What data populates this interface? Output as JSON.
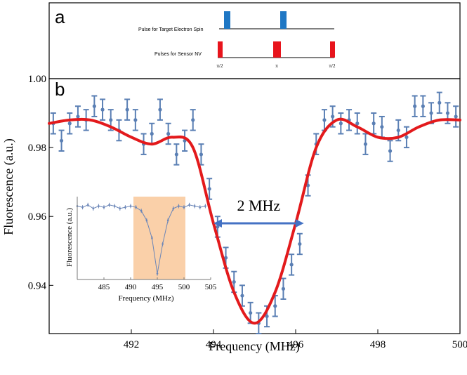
{
  "panel_a": {
    "label": "a",
    "rows": [
      {
        "name": "Pulse for Target Electron Spin",
        "color": "#1f77c4"
      },
      {
        "name": "Pulses for Sensor NV",
        "color": "#e8141c"
      }
    ],
    "pulse_labels": [
      "π/2",
      "π",
      "π/2"
    ]
  },
  "chart_data": {
    "type": "scatter",
    "panel_label": "b",
    "title": "",
    "xlabel": "Frequency (MHz)",
    "ylabel": "Fluorescence (a.u.)",
    "xlim": [
      490,
      500
    ],
    "ylim": [
      0.926,
      1.0
    ],
    "xticks": [
      492,
      494,
      496,
      498,
      500
    ],
    "yticks": [
      0.94,
      0.96,
      0.98,
      1.0
    ],
    "ytick_labels": [
      "0.94",
      "0.96",
      "0.98",
      "1.00"
    ],
    "series": [
      {
        "name": "data",
        "color": "#5a7fb4",
        "x": [
          490.1,
          490.3,
          490.5,
          490.7,
          490.9,
          491.1,
          491.3,
          491.5,
          491.7,
          491.9,
          492.1,
          492.3,
          492.5,
          492.7,
          492.9,
          493.1,
          493.3,
          493.5,
          493.7,
          493.9,
          494.1,
          494.3,
          494.5,
          494.7,
          494.9,
          495.1,
          495.3,
          495.5,
          495.7,
          495.9,
          496.1,
          496.3,
          496.5,
          496.7,
          496.9,
          497.1,
          497.3,
          497.5,
          497.7,
          497.9,
          498.1,
          498.3,
          498.5,
          498.7,
          498.9,
          499.1,
          499.3,
          499.5,
          499.7,
          499.9
        ],
        "y": [
          0.987,
          0.982,
          0.987,
          0.989,
          0.988,
          0.992,
          0.991,
          0.988,
          0.985,
          0.991,
          0.988,
          0.981,
          0.984,
          0.991,
          0.984,
          0.978,
          0.982,
          0.988,
          0.978,
          0.968,
          0.957,
          0.948,
          0.941,
          0.937,
          0.932,
          0.929,
          0.931,
          0.934,
          0.939,
          0.946,
          0.952,
          0.969,
          0.981,
          0.988,
          0.989,
          0.987,
          0.988,
          0.987,
          0.981,
          0.987,
          0.986,
          0.979,
          0.985,
          0.983,
          0.992,
          0.992,
          0.99,
          0.993,
          0.99,
          0.989
        ],
        "error": 0.003
      },
      {
        "name": "fit",
        "color": "#e31a1c",
        "x": [
          490.0,
          490.5,
          491.0,
          491.5,
          492.0,
          492.5,
          493.0,
          493.5,
          494.0,
          494.5,
          495.0,
          495.5,
          496.0,
          496.5,
          497.0,
          497.5,
          498.0,
          498.5,
          499.0,
          499.5,
          500.0
        ],
        "y": [
          0.987,
          0.988,
          0.988,
          0.986,
          0.983,
          0.981,
          0.983,
          0.98,
          0.958,
          0.938,
          0.929,
          0.938,
          0.958,
          0.98,
          0.988,
          0.986,
          0.983,
          0.983,
          0.986,
          0.988,
          0.988
        ]
      }
    ],
    "annotation": {
      "text": "2 MHz",
      "x_from": 494.0,
      "x_to": 496.2,
      "y": 0.958
    },
    "inset": {
      "xlabel": "Frequency (MHz)",
      "ylabel": "Fluorescence (a.u.)",
      "xlim": [
        480,
        505
      ],
      "xticks": [
        485,
        490,
        495,
        500,
        505
      ],
      "highlight_range": [
        490,
        500
      ],
      "highlight_color": "#f9c89a",
      "x": [
        480,
        481,
        482,
        483,
        484,
        485,
        486,
        487,
        488,
        489,
        490,
        491,
        492,
        493,
        494,
        495,
        496,
        497,
        498,
        499,
        500,
        501,
        502,
        503,
        504
      ],
      "y": [
        0.987,
        0.986,
        0.988,
        0.985,
        0.987,
        0.986,
        0.988,
        0.987,
        0.985,
        0.986,
        0.987,
        0.986,
        0.983,
        0.975,
        0.96,
        0.93,
        0.955,
        0.975,
        0.985,
        0.987,
        0.986,
        0.988,
        0.987,
        0.986,
        0.987
      ]
    }
  }
}
